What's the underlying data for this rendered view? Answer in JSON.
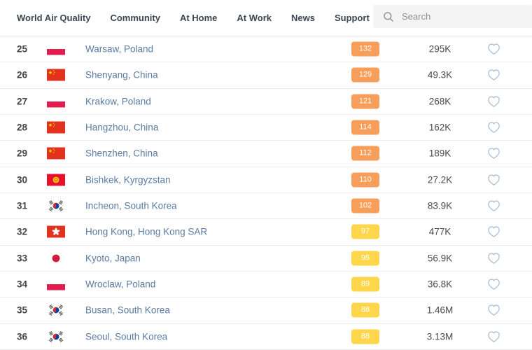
{
  "nav": {
    "items": [
      {
        "label": "World Air Quality"
      },
      {
        "label": "Community"
      },
      {
        "label": "At Home"
      },
      {
        "label": "At Work"
      },
      {
        "label": "News"
      },
      {
        "label": "Support"
      }
    ]
  },
  "search": {
    "placeholder": "Search",
    "value": ""
  },
  "colors": {
    "aqi_orange": "#f79e5b",
    "aqi_yellow": "#fdd64c",
    "city_link": "#5a7ba1",
    "heart_outline": "#abc0d9"
  },
  "ranking": {
    "rows": [
      {
        "rank": "25",
        "flag": "poland",
        "city": "Warsaw, Poland",
        "aqi": "132",
        "aqi_level": "orange",
        "followers": "295K"
      },
      {
        "rank": "26",
        "flag": "china",
        "city": "Shenyang, China",
        "aqi": "129",
        "aqi_level": "orange",
        "followers": "49.3K"
      },
      {
        "rank": "27",
        "flag": "poland",
        "city": "Krakow, Poland",
        "aqi": "121",
        "aqi_level": "orange",
        "followers": "268K"
      },
      {
        "rank": "28",
        "flag": "china",
        "city": "Hangzhou, China",
        "aqi": "114",
        "aqi_level": "orange",
        "followers": "162K"
      },
      {
        "rank": "29",
        "flag": "china",
        "city": "Shenzhen, China",
        "aqi": "112",
        "aqi_level": "orange",
        "followers": "189K"
      },
      {
        "rank": "30",
        "flag": "kyrgyzstan",
        "city": "Bishkek, Kyrgyzstan",
        "aqi": "110",
        "aqi_level": "orange",
        "followers": "27.2K"
      },
      {
        "rank": "31",
        "flag": "south-korea",
        "city": "Incheon, South Korea",
        "aqi": "102",
        "aqi_level": "orange",
        "followers": "83.9K"
      },
      {
        "rank": "32",
        "flag": "hong-kong",
        "city": "Hong Kong, Hong Kong SAR",
        "aqi": "97",
        "aqi_level": "yellow",
        "followers": "477K"
      },
      {
        "rank": "33",
        "flag": "japan",
        "city": "Kyoto, Japan",
        "aqi": "95",
        "aqi_level": "yellow",
        "followers": "56.9K"
      },
      {
        "rank": "34",
        "flag": "poland",
        "city": "Wroclaw, Poland",
        "aqi": "89",
        "aqi_level": "yellow",
        "followers": "36.8K"
      },
      {
        "rank": "35",
        "flag": "south-korea",
        "city": "Busan, South Korea",
        "aqi": "88",
        "aqi_level": "yellow",
        "followers": "1.46M"
      },
      {
        "rank": "36",
        "flag": "south-korea",
        "city": "Seoul, South Korea",
        "aqi": "88",
        "aqi_level": "yellow",
        "followers": "3.13M"
      }
    ]
  }
}
